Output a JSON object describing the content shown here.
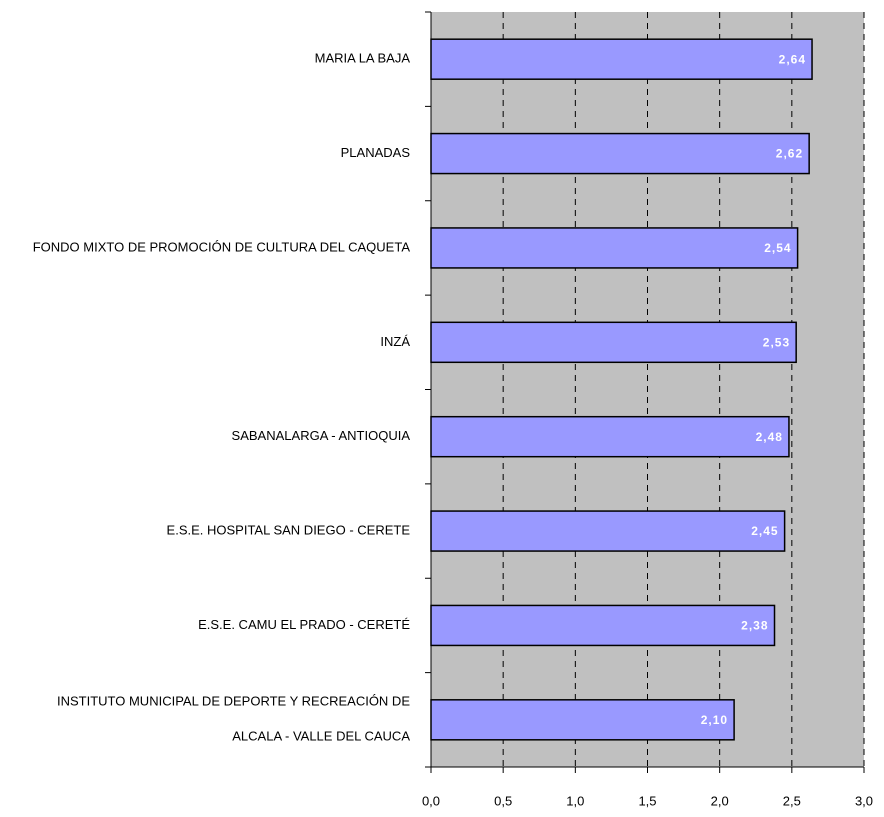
{
  "chart_data": {
    "type": "barh",
    "categories": [
      "MARIA LA BAJA",
      "PLANADAS",
      "FONDO MIXTO DE PROMOCIÓN DE CULTURA DEL CAQUETA",
      "INZÁ",
      "SABANALARGA - ANTIOQUIA",
      "E.S.E. HOSPITAL SAN DIEGO - CERETE",
      "E.S.E. CAMU EL PRADO - CERETÉ",
      "INSTITUTO MUNICIPAL DE DEPORTE Y RECREACIÓN DE\nALCALA - VALLE DEL CAUCA"
    ],
    "values": [
      2.64,
      2.62,
      2.54,
      2.53,
      2.48,
      2.45,
      2.38,
      2.1
    ],
    "value_labels": [
      "2,64",
      "2,62",
      "2,54",
      "2,53",
      "2,48",
      "2,45",
      "2,38",
      "2,10"
    ],
    "color": "#9999ff",
    "xlim": [
      0,
      3
    ],
    "xticks": [
      {
        "value": 0,
        "label": "0,0"
      },
      {
        "value": 0.5,
        "label": "0,5"
      },
      {
        "value": 1,
        "label": "1,0"
      },
      {
        "value": 1.5,
        "label": "1,5"
      },
      {
        "value": 2,
        "label": "2,0"
      },
      {
        "value": 2.5,
        "label": "2,5"
      },
      {
        "value": 3,
        "label": "3,0"
      }
    ],
    "grid": true
  }
}
